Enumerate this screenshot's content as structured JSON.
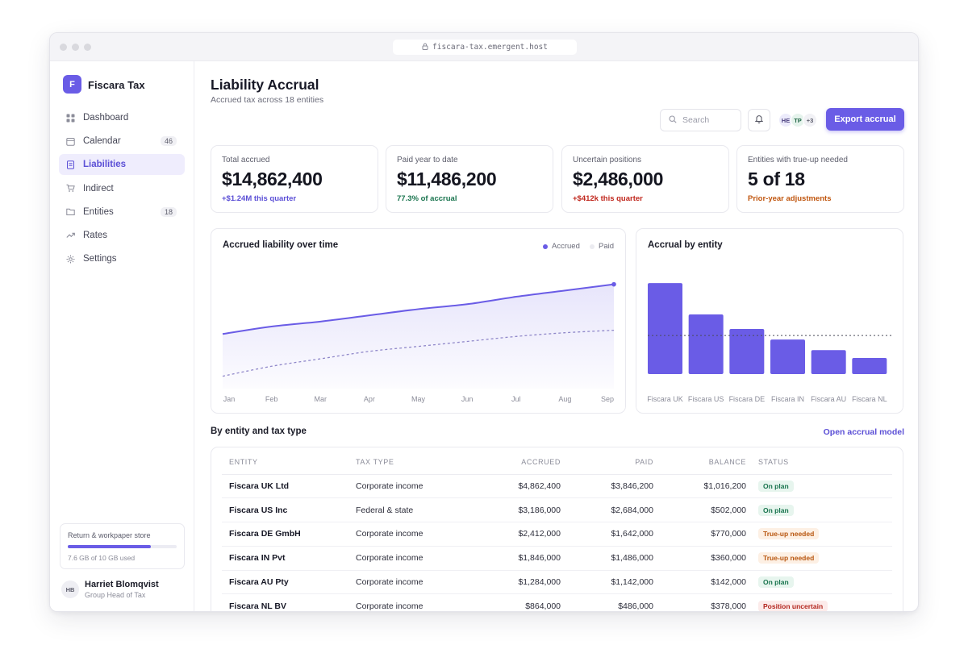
{
  "browser": {
    "url": "fiscara-tax.emergent.host"
  },
  "sidebar": {
    "brand_letter": "F",
    "brand_name": "Fiscara Tax",
    "items": [
      {
        "label": "Dashboard",
        "icon": "grid-icon"
      },
      {
        "label": "Calendar",
        "icon": "calendar-icon",
        "badge": "46"
      },
      {
        "label": "Liabilities",
        "icon": "document-icon",
        "active": true
      },
      {
        "label": "Indirect",
        "icon": "cart-icon"
      },
      {
        "label": "Entities",
        "icon": "folder-icon",
        "badge": "18"
      },
      {
        "label": "Rates",
        "icon": "trend-icon"
      },
      {
        "label": "Settings",
        "icon": "gear-icon"
      }
    ],
    "storage": {
      "title": "Return & workpaper store",
      "used_label": "7.6 GB of 10 GB used",
      "fraction": 0.76
    },
    "user": {
      "initials": "HB",
      "name": "Harriet Blomqvist",
      "role": "Group Head of Tax"
    }
  },
  "header": {
    "title": "Liability Accrual",
    "subtitle": "Accrued tax across 18 entities",
    "search_placeholder": "Search",
    "avatars": [
      "HE",
      "TP",
      "+3"
    ],
    "export_label": "Export accrual"
  },
  "kpis": [
    {
      "label": "Total accrued",
      "value": "$14,862,400",
      "note": "+$1.24M this quarter",
      "note_color": "#5b4fd6"
    },
    {
      "label": "Paid year to date",
      "value": "$11,486,200",
      "note": "77.3% of accrual",
      "note_color": "#19744e"
    },
    {
      "label": "Uncertain positions",
      "value": "$2,486,000",
      "note": "+$412k this quarter",
      "note_color": "#c0271d"
    },
    {
      "label": "Entities with true-up needed",
      "value": "5 of 18",
      "note": "Prior-year adjustments",
      "note_color": "#c0560f"
    }
  ],
  "colors": {
    "accent": "#6a5ce6",
    "paid_legend": "#ebebf0"
  },
  "charts": {
    "line_title": "Accrued liability over time",
    "bar_title": "Accrual by entity"
  },
  "chart_data": [
    {
      "type": "area",
      "title": "Accrued liability over time",
      "categories": [
        "Jan",
        "Feb",
        "Mar",
        "Apr",
        "May",
        "Jun",
        "Jul",
        "Aug",
        "Sep"
      ],
      "ylim": [
        0,
        100
      ],
      "series": [
        {
          "name": "Accrued",
          "values": [
            44,
            50,
            54,
            59,
            64,
            68,
            74,
            79,
            84
          ],
          "style": "solid-area"
        },
        {
          "name": "Paid",
          "values": [
            10,
            18,
            24,
            30,
            34,
            38,
            42,
            45,
            47
          ],
          "style": "dashed"
        }
      ],
      "grid": false,
      "legend": "top-right"
    },
    {
      "type": "bar",
      "title": "Accrual by entity",
      "categories": [
        "Fiscara UK",
        "Fiscara US",
        "Fiscara DE",
        "Fiscara IN",
        "Fiscara AU",
        "Fiscara NL"
      ],
      "values": [
        4862400,
        3186000,
        2412000,
        1846000,
        1284000,
        864000
      ],
      "reference_line": 2060000,
      "ylim": [
        0,
        5600000
      ],
      "grid": false
    }
  ],
  "table": {
    "section_title": "By entity and tax type",
    "link_label": "Open accrual model",
    "headers": [
      "ENTITY",
      "TAX TYPE",
      "ACCRUED",
      "PAID",
      "BALANCE",
      "STATUS"
    ],
    "rows": [
      {
        "entity": "Fiscara UK Ltd",
        "tax_type": "Corporate income",
        "accrued": "$4,862,400",
        "paid": "$3,846,200",
        "balance": "$1,016,200",
        "status": "On plan",
        "tone": "ok"
      },
      {
        "entity": "Fiscara US Inc",
        "tax_type": "Federal & state",
        "accrued": "$3,186,000",
        "paid": "$2,684,000",
        "balance": "$502,000",
        "status": "On plan",
        "tone": "ok"
      },
      {
        "entity": "Fiscara DE GmbH",
        "tax_type": "Corporate income",
        "accrued": "$2,412,000",
        "paid": "$1,642,000",
        "balance": "$770,000",
        "status": "True-up needed",
        "tone": "warn"
      },
      {
        "entity": "Fiscara IN Pvt",
        "tax_type": "Corporate income",
        "accrued": "$1,846,000",
        "paid": "$1,486,000",
        "balance": "$360,000",
        "status": "True-up needed",
        "tone": "warn"
      },
      {
        "entity": "Fiscara AU Pty",
        "tax_type": "Corporate income",
        "accrued": "$1,284,000",
        "paid": "$1,142,000",
        "balance": "$142,000",
        "status": "On plan",
        "tone": "ok"
      },
      {
        "entity": "Fiscara NL BV",
        "tax_type": "Corporate income",
        "accrued": "$864,000",
        "paid": "$486,000",
        "balance": "$378,000",
        "status": "Position uncertain",
        "tone": "err"
      }
    ]
  }
}
